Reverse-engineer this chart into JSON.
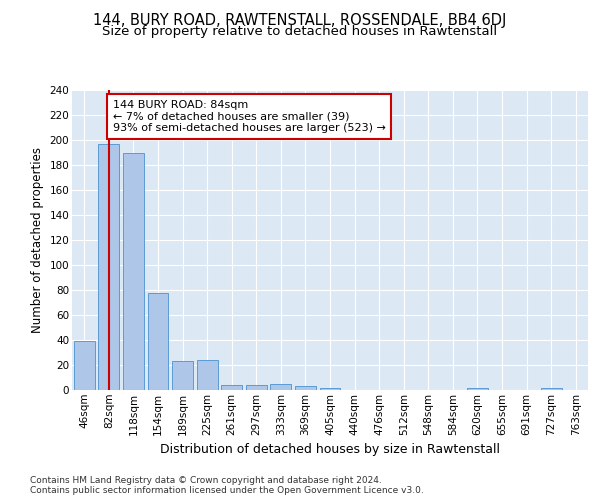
{
  "title1": "144, BURY ROAD, RAWTENSTALL, ROSSENDALE, BB4 6DJ",
  "title2": "Size of property relative to detached houses in Rawtenstall",
  "xlabel": "Distribution of detached houses by size in Rawtenstall",
  "ylabel": "Number of detached properties",
  "bar_labels": [
    "46sqm",
    "82sqm",
    "118sqm",
    "154sqm",
    "189sqm",
    "225sqm",
    "261sqm",
    "297sqm",
    "333sqm",
    "369sqm",
    "405sqm",
    "440sqm",
    "476sqm",
    "512sqm",
    "548sqm",
    "584sqm",
    "620sqm",
    "655sqm",
    "691sqm",
    "727sqm",
    "763sqm"
  ],
  "bar_values": [
    39,
    197,
    190,
    78,
    23,
    24,
    4,
    4,
    5,
    3,
    2,
    0,
    0,
    0,
    0,
    0,
    2,
    0,
    0,
    2,
    0
  ],
  "bar_color": "#aec6e8",
  "bar_edge_color": "#5b9bd5",
  "vline_x": 1.0,
  "vline_color": "#cc0000",
  "annotation_line1": "144 BURY ROAD: 84sqm",
  "annotation_line2": "← 7% of detached houses are smaller (39)",
  "annotation_line3": "93% of semi-detached houses are larger (523) →",
  "annotation_box_color": "#ffffff",
  "annotation_box_edge": "#cc0000",
  "ylim": [
    0,
    240
  ],
  "yticks": [
    0,
    20,
    40,
    60,
    80,
    100,
    120,
    140,
    160,
    180,
    200,
    220,
    240
  ],
  "bg_color": "#dce9f5",
  "footer1": "Contains HM Land Registry data © Crown copyright and database right 2024.",
  "footer2": "Contains public sector information licensed under the Open Government Licence v3.0.",
  "title1_fontsize": 10.5,
  "title2_fontsize": 9.5,
  "ylabel_fontsize": 8.5,
  "xlabel_fontsize": 9,
  "tick_fontsize": 7.5,
  "footer_fontsize": 6.5,
  "annot_fontsize": 8
}
